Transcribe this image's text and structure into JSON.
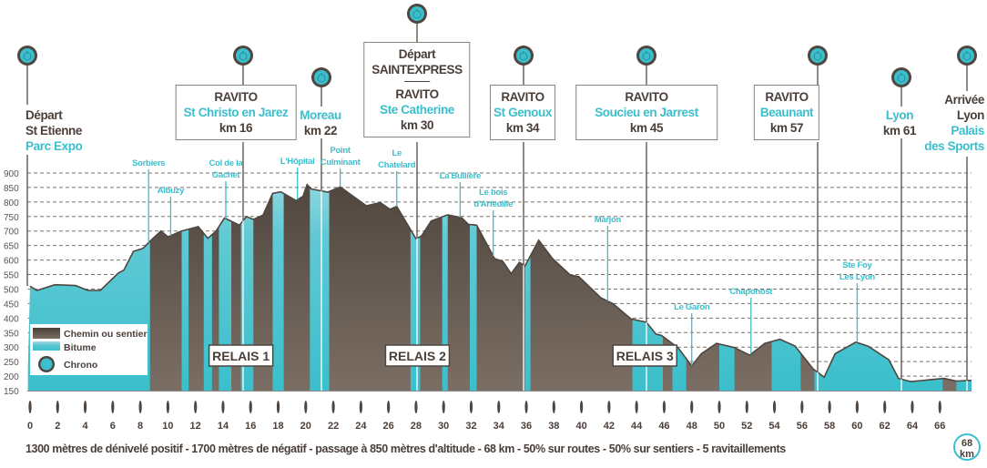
{
  "chart_data": {
    "type": "area",
    "title": "",
    "xlabel": "",
    "ylabel": "",
    "xlim": [
      0,
      68
    ],
    "ylim": [
      150,
      900
    ],
    "y_ticks": [
      150,
      200,
      250,
      300,
      350,
      400,
      450,
      500,
      550,
      600,
      650,
      700,
      750,
      800,
      850,
      900
    ],
    "x_ticks": [
      0,
      2,
      4,
      6,
      8,
      10,
      12,
      14,
      16,
      18,
      20,
      22,
      24,
      26,
      28,
      30,
      32,
      34,
      36,
      38,
      40,
      42,
      44,
      46,
      48,
      50,
      52,
      54,
      56,
      58,
      60,
      62,
      64,
      66
    ],
    "grid": "horizontal dashed",
    "legend_placement": "bottom-left",
    "legend": [
      {
        "label": "Chemin ou sentier",
        "type": "chemin"
      },
      {
        "label": "Bitume",
        "type": "bitume"
      },
      {
        "label": "Chrono",
        "type": "chrono"
      }
    ],
    "colors": {
      "chemin": "#5a4f47",
      "bitume": "#3bbfcc",
      "outline": "#4f4640",
      "text": "#4a3f38"
    },
    "profile": [
      [
        0,
        510
      ],
      [
        0.5,
        495
      ],
      [
        1.8,
        515
      ],
      [
        3.3,
        512
      ],
      [
        4.2,
        495
      ],
      [
        5.1,
        495
      ],
      [
        6.4,
        555
      ],
      [
        6.8,
        565
      ],
      [
        7.5,
        630
      ],
      [
        8.2,
        640
      ],
      [
        8.7,
        665
      ],
      [
        9.5,
        700
      ],
      [
        10.0,
        680
      ],
      [
        11.0,
        700
      ],
      [
        12.2,
        715
      ],
      [
        12.9,
        675
      ],
      [
        13.5,
        700
      ],
      [
        14.1,
        745
      ],
      [
        15.2,
        720
      ],
      [
        15.7,
        750
      ],
      [
        16.2,
        740
      ],
      [
        16.9,
        755
      ],
      [
        17.6,
        830
      ],
      [
        18.2,
        835
      ],
      [
        19.3,
        805
      ],
      [
        19.8,
        820
      ],
      [
        20.1,
        860
      ],
      [
        20.4,
        845
      ],
      [
        21.6,
        834
      ],
      [
        22.5,
        852
      ],
      [
        24.4,
        787
      ],
      [
        25.4,
        798
      ],
      [
        26.1,
        775
      ],
      [
        26.6,
        785
      ],
      [
        28.0,
        673
      ],
      [
        28.4,
        683
      ],
      [
        29.1,
        735
      ],
      [
        30.3,
        756
      ],
      [
        31.3,
        746
      ],
      [
        31.8,
        723
      ],
      [
        32.4,
        720
      ],
      [
        33.7,
        605
      ],
      [
        34.3,
        595
      ],
      [
        34.9,
        553
      ],
      [
        35.5,
        592
      ],
      [
        35.9,
        579
      ],
      [
        36.9,
        668
      ],
      [
        37.9,
        605
      ],
      [
        39.2,
        548
      ],
      [
        39.8,
        543
      ],
      [
        41.4,
        470
      ],
      [
        42.3,
        449
      ],
      [
        43.6,
        397
      ],
      [
        44.7,
        386
      ],
      [
        45.4,
        345
      ],
      [
        45.8,
        340
      ],
      [
        47.0,
        298
      ],
      [
        48.0,
        235
      ],
      [
        48.7,
        277
      ],
      [
        49.8,
        313
      ],
      [
        51.1,
        298
      ],
      [
        52.2,
        272
      ],
      [
        53.3,
        313
      ],
      [
        54.4,
        327
      ],
      [
        55.5,
        303
      ],
      [
        56.8,
        225
      ],
      [
        57.6,
        196
      ],
      [
        58.4,
        277
      ],
      [
        59.9,
        317
      ],
      [
        60.8,
        303
      ],
      [
        62.3,
        256
      ],
      [
        63.0,
        192
      ],
      [
        63.9,
        181
      ],
      [
        66.3,
        192
      ],
      [
        67.2,
        183
      ],
      [
        68.3,
        185
      ]
    ],
    "surface_segments": [
      {
        "from": 0,
        "to": 8.7,
        "type": "bitume"
      },
      {
        "from": 8.7,
        "to": 11.0,
        "type": "chemin"
      },
      {
        "from": 11.0,
        "to": 11.5,
        "type": "bitume"
      },
      {
        "from": 11.5,
        "to": 12.6,
        "type": "chemin"
      },
      {
        "from": 12.6,
        "to": 13.2,
        "type": "bitume"
      },
      {
        "from": 13.2,
        "to": 13.7,
        "type": "chemin"
      },
      {
        "from": 13.7,
        "to": 14.6,
        "type": "bitume"
      },
      {
        "from": 14.6,
        "to": 15.3,
        "type": "chemin"
      },
      {
        "from": 15.3,
        "to": 16.2,
        "type": "bitume"
      },
      {
        "from": 16.2,
        "to": 17.6,
        "type": "chemin"
      },
      {
        "from": 17.6,
        "to": 18.4,
        "type": "bitume"
      },
      {
        "from": 18.4,
        "to": 20.3,
        "type": "chemin"
      },
      {
        "from": 20.3,
        "to": 21.7,
        "type": "bitume"
      },
      {
        "from": 21.7,
        "to": 27.6,
        "type": "chemin"
      },
      {
        "from": 27.6,
        "to": 28.3,
        "type": "bitume"
      },
      {
        "from": 28.3,
        "to": 29.9,
        "type": "chemin"
      },
      {
        "from": 29.9,
        "to": 30.3,
        "type": "bitume"
      },
      {
        "from": 30.3,
        "to": 31.9,
        "type": "chemin"
      },
      {
        "from": 31.9,
        "to": 32.4,
        "type": "bitume"
      },
      {
        "from": 32.4,
        "to": 35.9,
        "type": "chemin"
      },
      {
        "from": 35.9,
        "to": 36.3,
        "type": "bitume"
      },
      {
        "from": 36.3,
        "to": 43.7,
        "type": "chemin"
      },
      {
        "from": 43.7,
        "to": 45.9,
        "type": "bitume"
      },
      {
        "from": 45.9,
        "to": 46.6,
        "type": "chemin"
      },
      {
        "from": 46.6,
        "to": 47.6,
        "type": "bitume"
      },
      {
        "from": 47.6,
        "to": 50.0,
        "type": "chemin"
      },
      {
        "from": 50.0,
        "to": 51.1,
        "type": "bitume"
      },
      {
        "from": 51.1,
        "to": 53.8,
        "type": "chemin"
      },
      {
        "from": 53.8,
        "to": 55.9,
        "type": "bitume"
      },
      {
        "from": 55.9,
        "to": 56.9,
        "type": "chemin"
      },
      {
        "from": 56.9,
        "to": 66.2,
        "type": "bitume"
      },
      {
        "from": 66.2,
        "to": 67.2,
        "type": "chemin"
      },
      {
        "from": 67.2,
        "to": 68.3,
        "type": "bitume"
      }
    ],
    "places": [
      {
        "name": [
          "Sorbiers"
        ],
        "km": 8.6
      },
      {
        "name": [
          "Albuzy"
        ],
        "km": 10.2
      },
      {
        "name": [
          "Col de la",
          "Gachet"
        ],
        "km": 14.2
      },
      {
        "name": [
          "L'Hôpital"
        ],
        "km": 19.4
      },
      {
        "name": [
          "Point",
          "Culminant"
        ],
        "km": 22.5
      },
      {
        "name": [
          "Le",
          "Chatelard"
        ],
        "km": 26.6
      },
      {
        "name": [
          "La Bullière"
        ],
        "km": 31.2
      },
      {
        "name": [
          "Le bois",
          "d'Arfeuille"
        ],
        "km": 33.6
      },
      {
        "name": [
          "Marjon"
        ],
        "km": 41.9
      },
      {
        "name": [
          "Le Garon"
        ],
        "km": 48.0
      },
      {
        "name": [
          "Chaponost"
        ],
        "km": 52.3
      },
      {
        "name": [
          "Ste Foy",
          "Les Lyon"
        ],
        "km": 60.0
      }
    ],
    "relais": [
      {
        "label": "RELAIS 1",
        "km": 15.3
      },
      {
        "label": "RELAIS 2",
        "km": 28.1
      },
      {
        "label": "RELAIS 3",
        "km": 44.6
      }
    ]
  },
  "checkpoints": {
    "start": {
      "line1": "Départ",
      "line2": "St Etienne",
      "line3": "Parc Expo"
    },
    "st_christo": {
      "kind": "RAVITO",
      "place": "St Christo en Jarez",
      "km": "km 16"
    },
    "moreau": {
      "place": "Moreau",
      "km": "km 22"
    },
    "ste_catherine": {
      "line1": "Départ",
      "line2": "SAINTEXPRESS",
      "kind": "RAVITO",
      "place": "Ste Catherine",
      "km": "km 30"
    },
    "st_genoux": {
      "kind": "RAVITO",
      "place": "St Genoux",
      "km": "km 34"
    },
    "soucieu": {
      "kind": "RAVITO",
      "place": "Soucieu en Jarrest",
      "km": "km 45"
    },
    "beaunant": {
      "kind": "RAVITO",
      "place": "Beaunant",
      "km": "km 57"
    },
    "lyon": {
      "place": "Lyon",
      "km": "km 61"
    },
    "finish": {
      "line1": "Arrivée",
      "line2": "Lyon",
      "line3": "Palais",
      "line4": "des Sports"
    }
  },
  "footer": {
    "summary": "1300 mètres de dénivelé positif - 1700 mètres de négatif - passage à 850 mètres d'altitude - 68 km - 50% sur routes - 50% sur sentiers - 5  ravitaillements",
    "total_value": "68",
    "total_unit": "km"
  }
}
